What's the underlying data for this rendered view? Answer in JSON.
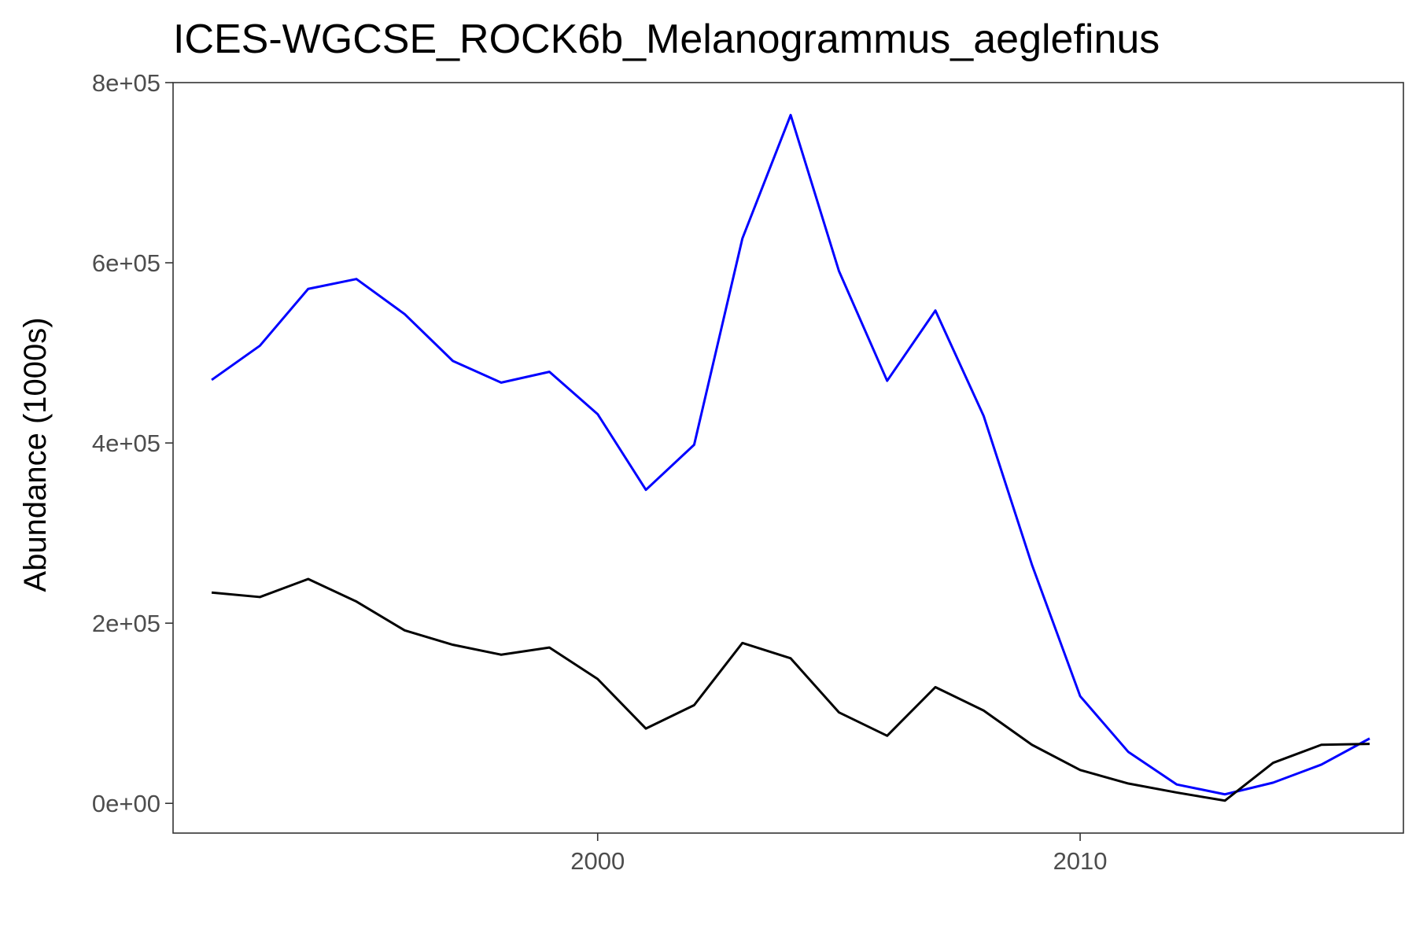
{
  "chart_data": {
    "type": "line",
    "title": "ICES-WGCSE_ROCK6b_Melanogrammus_aeglefinus",
    "xlabel": "",
    "ylabel": "Abundance (1000s)",
    "xlim": [
      1991.2,
      2016.7
    ],
    "ylim": [
      -33000,
      800000
    ],
    "x_ticks": [
      {
        "value": 2000,
        "label": "2000"
      },
      {
        "value": 2010,
        "label": "2010"
      }
    ],
    "y_ticks": [
      {
        "value": 0,
        "label": "0e+00"
      },
      {
        "value": 200000,
        "label": "2e+05"
      },
      {
        "value": 400000,
        "label": "4e+05"
      },
      {
        "value": 600000,
        "label": "6e+05"
      },
      {
        "value": 800000,
        "label": "8e+05"
      }
    ],
    "grid": false,
    "legend": "none",
    "x": [
      1992,
      1993,
      1994,
      1995,
      1996,
      1997,
      1998,
      1999,
      2000,
      2001,
      2002,
      2003,
      2004,
      2005,
      2006,
      2007,
      2008,
      2009,
      2010,
      2011,
      2012,
      2013,
      2014,
      2015,
      2016
    ],
    "series": [
      {
        "color": "#0000ff",
        "values": [
          470000,
          508000,
          571000,
          582000,
          543000,
          491000,
          467000,
          479000,
          432000,
          348000,
          398000,
          627000,
          764000,
          591000,
          469000,
          547000,
          430000,
          265000,
          119000,
          57000,
          21000,
          10000,
          23000,
          43000,
          72000
        ]
      },
      {
        "color": "#000000",
        "values": [
          234000,
          229000,
          249000,
          224000,
          192000,
          176000,
          165000,
          173000,
          138000,
          83000,
          109000,
          178000,
          161000,
          101000,
          75000,
          129000,
          103000,
          65000,
          37000,
          22000,
          12000,
          3000,
          45000,
          65000,
          66000
        ]
      }
    ]
  }
}
